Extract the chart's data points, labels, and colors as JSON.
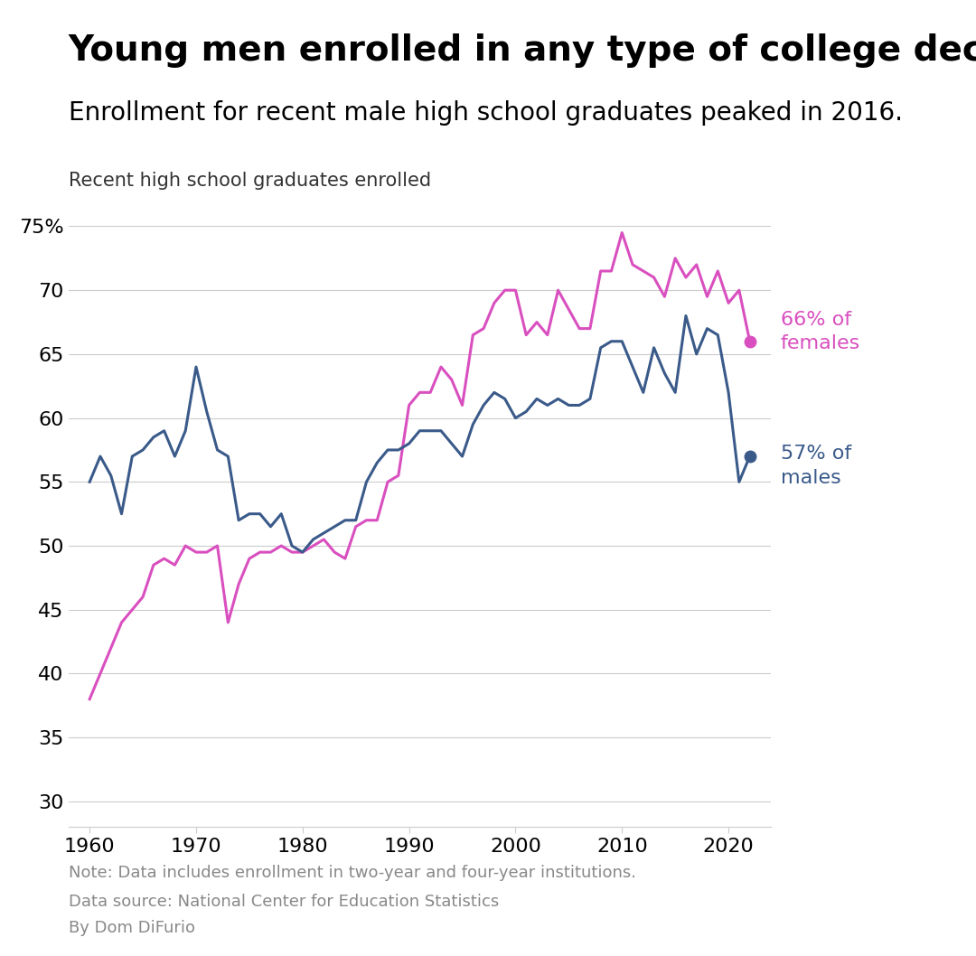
{
  "title": "Young men enrolled in any type of college declining",
  "subtitle": "Enrollment for recent male high school graduates peaked in 2016.",
  "ylabel": "Recent high school graduates enrolled",
  "note": "Note: Data includes enrollment in two-year and four-year institutions.",
  "source": "Data source: National Center for Education Statistics",
  "author": "By Dom DiFurio",
  "male_color": "#3a5a8a",
  "female_color": "#d94fbf",
  "title_fontsize": 28,
  "subtitle_fontsize": 20,
  "ylabel_fontsize": 15,
  "tick_fontsize": 16,
  "annotation_fontsize": 16,
  "note_fontsize": 13,
  "years": [
    1960,
    1961,
    1962,
    1963,
    1964,
    1965,
    1966,
    1967,
    1968,
    1969,
    1970,
    1971,
    1972,
    1973,
    1974,
    1975,
    1976,
    1977,
    1978,
    1979,
    1980,
    1981,
    1982,
    1983,
    1984,
    1985,
    1986,
    1987,
    1988,
    1989,
    1990,
    1991,
    1992,
    1993,
    1994,
    1995,
    1996,
    1997,
    1998,
    1999,
    2000,
    2001,
    2002,
    2003,
    2004,
    2005,
    2006,
    2007,
    2008,
    2009,
    2010,
    2011,
    2012,
    2013,
    2014,
    2015,
    2016,
    2017,
    2018,
    2019,
    2020,
    2021,
    2022
  ],
  "males": [
    55.0,
    57.0,
    55.5,
    52.5,
    57.0,
    57.5,
    58.5,
    59.0,
    57.0,
    59.0,
    64.0,
    60.5,
    57.5,
    57.0,
    52.0,
    52.5,
    52.5,
    51.5,
    52.5,
    50.0,
    49.5,
    50.5,
    51.0,
    51.5,
    52.0,
    52.0,
    55.0,
    56.5,
    57.5,
    57.5,
    58.0,
    59.0,
    59.0,
    59.0,
    58.0,
    57.0,
    59.5,
    61.0,
    62.0,
    61.5,
    60.0,
    60.5,
    61.5,
    61.0,
    61.5,
    61.0,
    61.0,
    61.5,
    65.5,
    66.0,
    66.0,
    64.0,
    62.0,
    65.5,
    63.5,
    62.0,
    68.0,
    65.0,
    67.0,
    66.5,
    62.0,
    55.0,
    57.0
  ],
  "females": [
    38.0,
    40.0,
    42.0,
    44.0,
    45.0,
    46.0,
    48.5,
    49.0,
    48.5,
    50.0,
    49.5,
    49.5,
    50.0,
    44.0,
    47.0,
    49.0,
    49.5,
    49.5,
    50.0,
    49.5,
    49.5,
    50.0,
    50.5,
    49.5,
    49.0,
    51.5,
    52.0,
    52.0,
    55.0,
    55.5,
    61.0,
    62.0,
    62.0,
    64.0,
    63.0,
    61.0,
    66.5,
    67.0,
    69.0,
    70.0,
    70.0,
    66.5,
    67.5,
    66.5,
    70.0,
    68.5,
    67.0,
    67.0,
    71.5,
    71.5,
    74.5,
    72.0,
    71.5,
    71.0,
    69.5,
    72.5,
    71.0,
    72.0,
    69.5,
    71.5,
    69.0,
    70.0,
    66.0
  ],
  "ylim": [
    28,
    77
  ],
  "yticks": [
    30,
    35,
    40,
    45,
    50,
    55,
    60,
    65,
    70,
    75
  ],
  "ytick_labels": [
    "30",
    "35",
    "40",
    "45",
    "50",
    "55",
    "60",
    "65",
    "70",
    "75%"
  ],
  "xticks": [
    1960,
    1970,
    1980,
    1990,
    2000,
    2010,
    2020
  ],
  "bg_color": "#ffffff",
  "grid_color": "#cccccc"
}
